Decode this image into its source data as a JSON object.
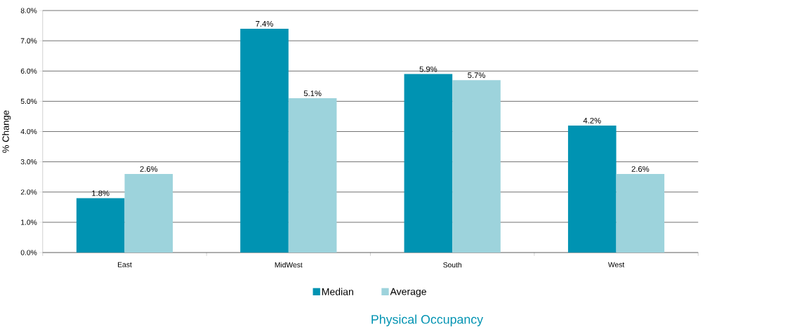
{
  "chart_data": {
    "type": "bar",
    "title": "Physical Occupancy",
    "ylabel": "% Change",
    "categories": [
      "East",
      "MidWest",
      "South",
      "West"
    ],
    "series": [
      {
        "name": "Median",
        "color": "#0093b2",
        "values": [
          1.8,
          7.4,
          5.9,
          4.2
        ],
        "value_labels": [
          "1.8%",
          "7.4%",
          "5.9%",
          "4.2%"
        ]
      },
      {
        "name": "Average",
        "color": "#9dd3dc",
        "values": [
          2.6,
          5.1,
          5.7,
          2.6
        ],
        "value_labels": [
          "2.6%",
          "5.1%",
          "5.7%",
          "2.6%"
        ]
      }
    ],
    "ylim": [
      0,
      8
    ],
    "yticks": [
      {
        "value": 0,
        "label": "0.0%"
      },
      {
        "value": 1,
        "label": "1.0%"
      },
      {
        "value": 2,
        "label": "2.0%"
      },
      {
        "value": 3,
        "label": "3.0%"
      },
      {
        "value": 4,
        "label": "4.0%"
      },
      {
        "value": 5,
        "label": "5.0%"
      },
      {
        "value": 6,
        "label": "6.0%"
      },
      {
        "value": 7,
        "label": "7.0%"
      },
      {
        "value": 8,
        "label": "8.0%"
      }
    ],
    "grid": "y",
    "legend": "bottom"
  }
}
